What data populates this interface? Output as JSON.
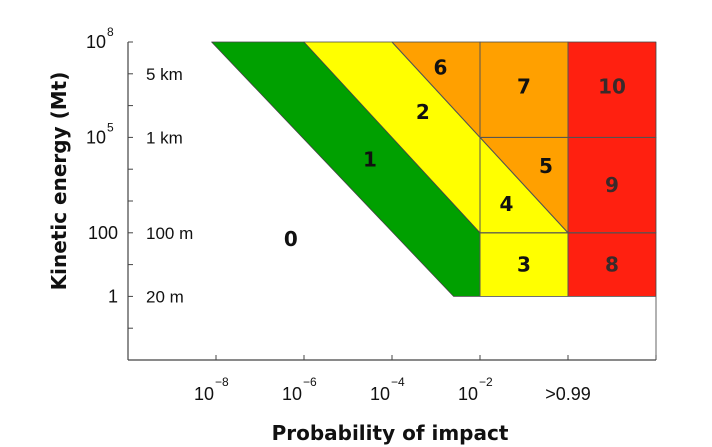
{
  "chart_data": {
    "type": "area",
    "title": "",
    "xlabel": "Probability of impact",
    "ylabel": "Kinetic energy (Mt)",
    "x_ticks": [
      {
        "base": "10",
        "exp": "−8",
        "at": 0
      },
      {
        "base": "10",
        "exp": "−6",
        "at": 1
      },
      {
        "base": "10",
        "exp": "−4",
        "at": 2
      },
      {
        "base": "10",
        "exp": "−2",
        "at": 3
      },
      {
        "base": ">0.99",
        "exp": "",
        "at": 4
      }
    ],
    "y_ticks": [
      {
        "base": "1",
        "exp": "",
        "at": 0
      },
      {
        "base": "100",
        "exp": "",
        "at": 2
      },
      {
        "base": "10",
        "exp": "5",
        "at": 5
      },
      {
        "base": "10",
        "exp": "8",
        "at": 8
      }
    ],
    "size_labels": [
      {
        "text": "20 m",
        "at": 0
      },
      {
        "text": "100 m",
        "at": 2
      },
      {
        "text": "1 km",
        "at": 5
      },
      {
        "text": "5 km",
        "at": 7
      }
    ],
    "x_range": [
      -1,
      5
    ],
    "y_range": [
      -2,
      8
    ],
    "colors": {
      "white": "#ffffff",
      "green": "#00a000",
      "yellow": "#ffff00",
      "orange": "#ffa000",
      "red": "#ff2010"
    },
    "regions": [
      {
        "label": "0",
        "color": "white",
        "label_at": [
          0.85,
          1.8
        ],
        "polygon": [
          [
            -1,
            -2
          ],
          [
            5,
            -2
          ],
          [
            5,
            0
          ],
          [
            2.7,
            0
          ],
          [
            -0.05,
            8
          ],
          [
            -1,
            8
          ]
        ]
      },
      {
        "label": "1",
        "color": "green",
        "label_at": [
          1.75,
          4.3
        ],
        "polygon": [
          [
            -0.05,
            8
          ],
          [
            1,
            8
          ],
          [
            3,
            2
          ],
          [
            3,
            0
          ],
          [
            2.7,
            0
          ]
        ]
      },
      {
        "label": "2",
        "color": "yellow",
        "label_at": [
          2.35,
          5.8
        ],
        "polygon": [
          [
            1,
            8
          ],
          [
            2,
            8
          ],
          [
            3,
            5
          ],
          [
            3,
            2
          ]
        ]
      },
      {
        "label": "3",
        "color": "yellow",
        "label_at": [
          3.5,
          1
        ],
        "polygon": [
          [
            3,
            0
          ],
          [
            4,
            0
          ],
          [
            4,
            2
          ],
          [
            3,
            2
          ]
        ]
      },
      {
        "label": "4",
        "color": "yellow",
        "label_at": [
          3.3,
          2.9
        ],
        "polygon": [
          [
            3,
            2
          ],
          [
            4,
            2
          ],
          [
            3,
            5
          ]
        ]
      },
      {
        "label": "5",
        "color": "orange",
        "label_at": [
          3.75,
          4.1
        ],
        "polygon": [
          [
            3,
            5
          ],
          [
            4,
            5
          ],
          [
            4,
            2
          ]
        ]
      },
      {
        "label": "6",
        "color": "orange",
        "label_at": [
          2.55,
          7.2
        ],
        "polygon": [
          [
            2,
            8
          ],
          [
            3,
            8
          ],
          [
            3,
            5
          ]
        ]
      },
      {
        "label": "7",
        "color": "orange",
        "label_at": [
          3.5,
          6.6
        ],
        "polygon": [
          [
            3,
            5
          ],
          [
            3,
            8
          ],
          [
            4,
            8
          ],
          [
            4,
            5
          ]
        ]
      },
      {
        "label": "8",
        "color": "red",
        "label_at": [
          4.5,
          1
        ],
        "polygon": [
          [
            4,
            0
          ],
          [
            5,
            0
          ],
          [
            5,
            2
          ],
          [
            4,
            2
          ]
        ]
      },
      {
        "label": "9",
        "color": "red",
        "label_at": [
          4.5,
          3.5
        ],
        "polygon": [
          [
            4,
            2
          ],
          [
            5,
            2
          ],
          [
            5,
            5
          ],
          [
            4,
            5
          ]
        ]
      },
      {
        "label": "10",
        "color": "red",
        "label_at": [
          4.5,
          6.6
        ],
        "polygon": [
          [
            4,
            5
          ],
          [
            5,
            5
          ],
          [
            5,
            8
          ],
          [
            4,
            8
          ]
        ]
      }
    ],
    "grid_lines": [
      [
        [
          3,
          0
        ],
        [
          3,
          8
        ]
      ],
      [
        [
          4,
          0
        ],
        [
          4,
          8
        ]
      ],
      [
        [
          3,
          2
        ],
        [
          5,
          2
        ]
      ],
      [
        [
          3,
          5
        ],
        [
          5,
          5
        ]
      ],
      [
        [
          2,
          8
        ],
        [
          4,
          2
        ]
      ]
    ],
    "grid": false
  }
}
